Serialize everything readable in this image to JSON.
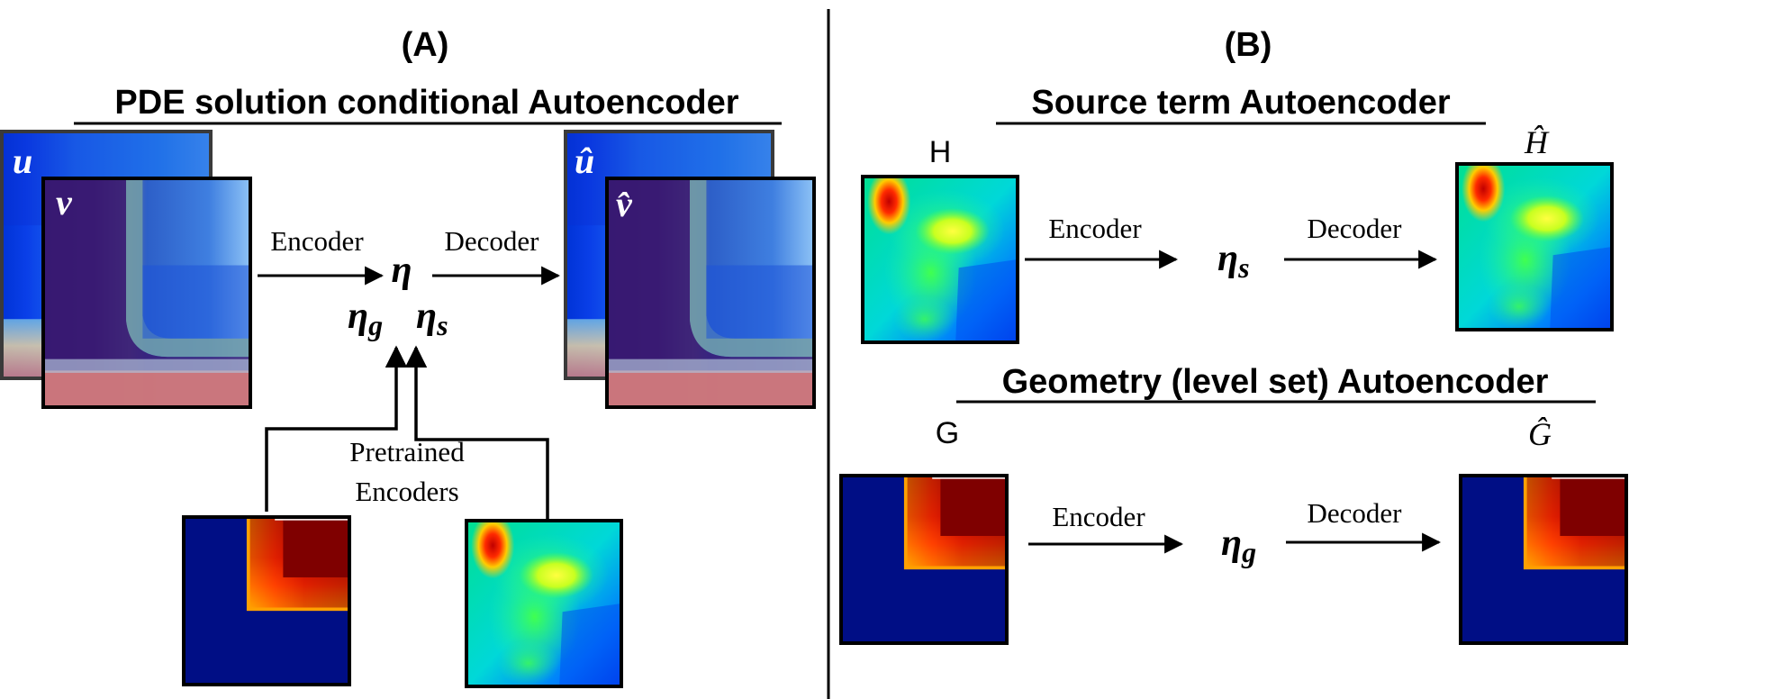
{
  "panel_a": {
    "tag": "(A)",
    "title": "PDE solution conditional Autoencoder",
    "input_u": "u",
    "input_v": "v",
    "encoder_label": "Encoder",
    "latent": "η",
    "latent_g": "η",
    "latent_g_sub": "g",
    "latent_s": "η",
    "latent_s_sub": "s",
    "decoder_label": "Decoder",
    "output_u": "û",
    "output_v": "v̂",
    "pretrained_line1": "Pretrained",
    "pretrained_line2": "Encoders"
  },
  "panel_b": {
    "tag": "(B)",
    "source_title": "Source term Autoencoder",
    "source_input": "H",
    "source_output": "Ĥ",
    "source_encoder": "Encoder",
    "source_latent": "η",
    "source_latent_sub": "s",
    "source_decoder": "Decoder",
    "geometry_title": "Geometry (level set) Autoencoder",
    "geometry_input": "G",
    "geometry_output": "Ĝ",
    "geometry_encoder": "Encoder",
    "geometry_latent": "η",
    "geometry_latent_sub": "g",
    "geometry_decoder": "Decoder"
  },
  "colors": {
    "line": "#000000",
    "jet_navy": "#000e85",
    "jet_red": "#7f0000",
    "field_blue": "#1e88f4",
    "field_pink": "#d98a88"
  }
}
